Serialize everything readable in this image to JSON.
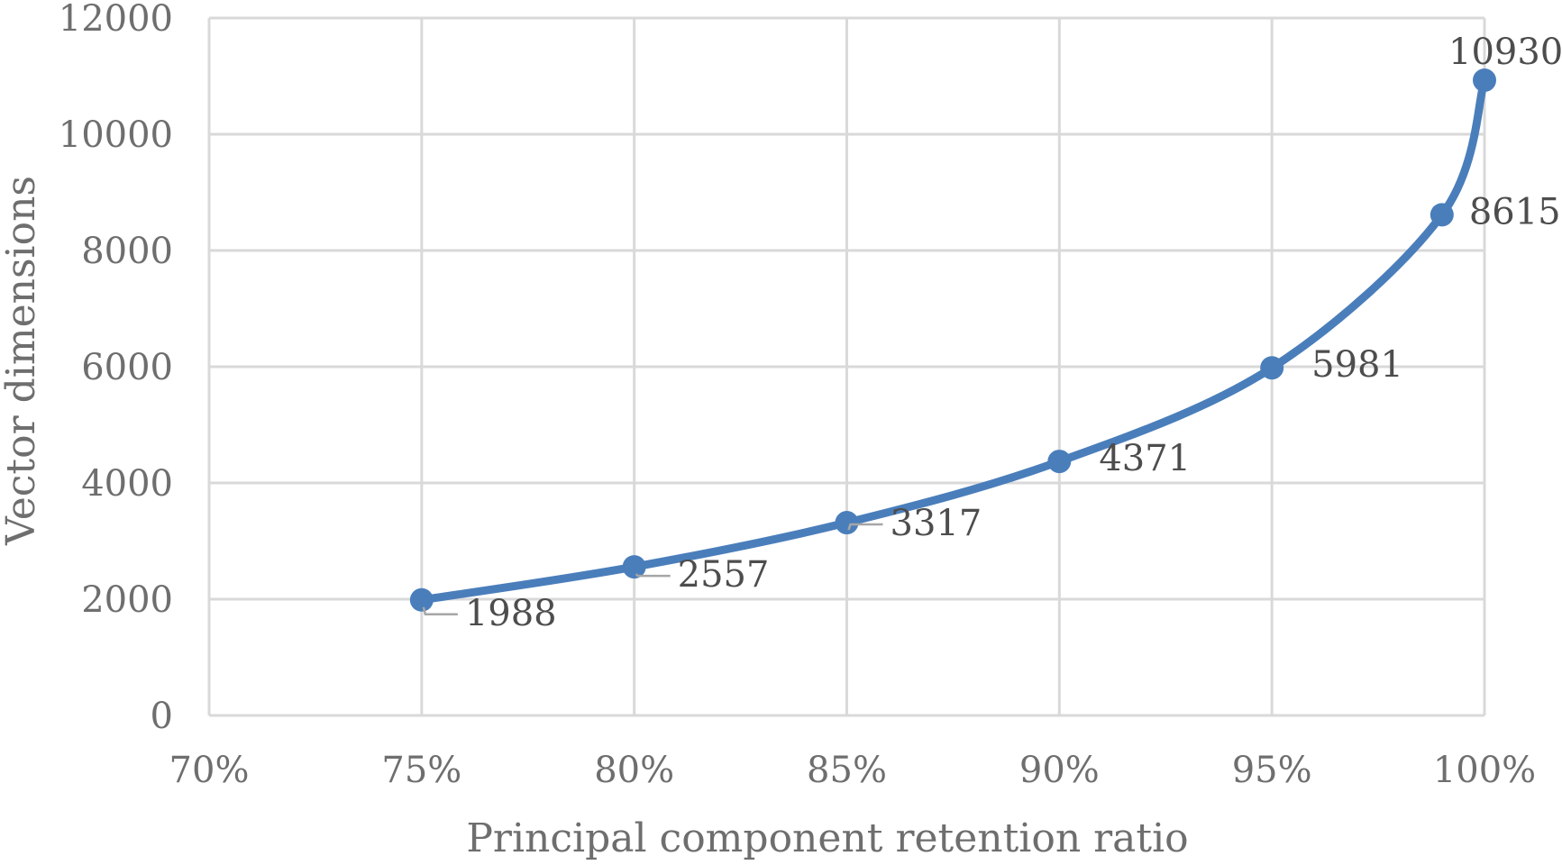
{
  "chart_data": {
    "type": "line",
    "title": "",
    "xlabel": "Principal component retention ratio",
    "ylabel": "Vector dimensions",
    "xlim": [
      0.7,
      1.0
    ],
    "ylim": [
      0,
      12000
    ],
    "x_ticks": [
      0.7,
      0.75,
      0.8,
      0.85,
      0.9,
      0.95,
      1.0
    ],
    "x_tick_labels": [
      "70%",
      "75%",
      "80%",
      "85%",
      "90%",
      "95%",
      "100%"
    ],
    "y_ticks": [
      0,
      2000,
      4000,
      6000,
      8000,
      10000,
      12000
    ],
    "y_tick_labels": [
      "0",
      "2000",
      "4000",
      "6000",
      "8000",
      "10000",
      "12000"
    ],
    "grid": true,
    "smooth": true,
    "color": "#4a7ebb",
    "series": [
      {
        "x": [
          0.75,
          0.8,
          0.85,
          0.9,
          0.95,
          0.99,
          1.0
        ],
        "values": [
          1988,
          2557,
          3317,
          4371,
          5981,
          8615,
          10930
        ],
        "labels": [
          "1988",
          "2557",
          "3317",
          "4371",
          "5981",
          "8615",
          "10930"
        ]
      }
    ]
  }
}
